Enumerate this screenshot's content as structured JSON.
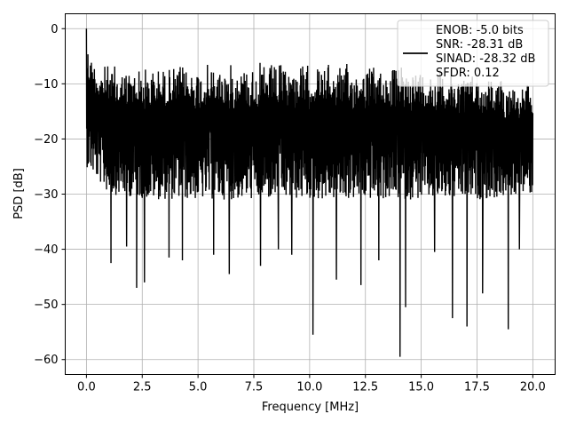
{
  "chart_data": {
    "type": "line",
    "title": "",
    "xlabel": "Frequency [MHz]",
    "ylabel": "PSD [dB]",
    "xlim": [
      -0.95,
      21.0
    ],
    "ylim": [
      -62.7,
      2.7
    ],
    "grid": true,
    "legend_position": "top-right",
    "x_ticks": [
      0.0,
      2.5,
      5.0,
      7.5,
      10.0,
      12.5,
      15.0,
      17.5,
      20.0
    ],
    "x_tick_labels": [
      "0.0",
      "2.5",
      "5.0",
      "7.5",
      "10.0",
      "12.5",
      "15.0",
      "17.5",
      "20.0"
    ],
    "y_ticks": [
      0,
      -10,
      -20,
      -30,
      -40,
      -50,
      -60
    ],
    "y_tick_labels": [
      "0",
      "−10",
      "−20",
      "−30",
      "−40",
      "−50",
      "−60"
    ],
    "series": [
      {
        "color": "#000000",
        "x_range": [
          0.0,
          20.0
        ],
        "envelope": {
          "upper": [
            [
              0.0,
              0.0
            ],
            [
              0.05,
              -1.5
            ],
            [
              0.2,
              -4.0
            ],
            [
              0.6,
              -6.0
            ],
            [
              1.5,
              -6.5
            ],
            [
              3.0,
              -6.5
            ],
            [
              5.0,
              -6.2
            ],
            [
              7.5,
              -6.0
            ],
            [
              10.0,
              -6.0
            ],
            [
              12.5,
              -6.2
            ],
            [
              15.0,
              -6.5
            ],
            [
              17.5,
              -7.5
            ],
            [
              20.0,
              -10.0
            ]
          ],
          "typical_low": [
            [
              0.0,
              -25.0
            ],
            [
              1.0,
              -30.0
            ],
            [
              3.0,
              -31.0
            ],
            [
              6.0,
              -31.0
            ],
            [
              9.0,
              -31.0
            ],
            [
              12.0,
              -31.0
            ],
            [
              15.0,
              -31.0
            ],
            [
              18.0,
              -31.0
            ],
            [
              20.0,
              -30.0
            ]
          ]
        },
        "notable_minima": [
          {
            "x": 2.25,
            "y": -47.0
          },
          {
            "x": 2.6,
            "y": -46.0
          },
          {
            "x": 1.1,
            "y": -42.5
          },
          {
            "x": 4.3,
            "y": -42.0
          },
          {
            "x": 6.4,
            "y": -44.5
          },
          {
            "x": 7.8,
            "y": -43.0
          },
          {
            "x": 10.15,
            "y": -55.5
          },
          {
            "x": 11.2,
            "y": -45.5
          },
          {
            "x": 12.3,
            "y": -46.5
          },
          {
            "x": 14.05,
            "y": -59.5
          },
          {
            "x": 14.3,
            "y": -50.5
          },
          {
            "x": 16.4,
            "y": -52.5
          },
          {
            "x": 17.05,
            "y": -54.0
          },
          {
            "x": 17.75,
            "y": -48.0
          },
          {
            "x": 18.9,
            "y": -54.5
          },
          {
            "x": 1.8,
            "y": -39.5
          },
          {
            "x": 3.7,
            "y": -41.5
          },
          {
            "x": 5.7,
            "y": -41.0
          },
          {
            "x": 8.6,
            "y": -40.0
          },
          {
            "x": 9.2,
            "y": -41.0
          },
          {
            "x": 13.1,
            "y": -42.0
          },
          {
            "x": 15.6,
            "y": -40.5
          },
          {
            "x": 19.4,
            "y": -40.0
          }
        ]
      }
    ],
    "legend": {
      "lines": [
        "ENOB: -5.0 bits",
        "SNR: -28.31 dB",
        "SINAD: -28.32 dB",
        "SFDR: 0.12"
      ]
    }
  }
}
